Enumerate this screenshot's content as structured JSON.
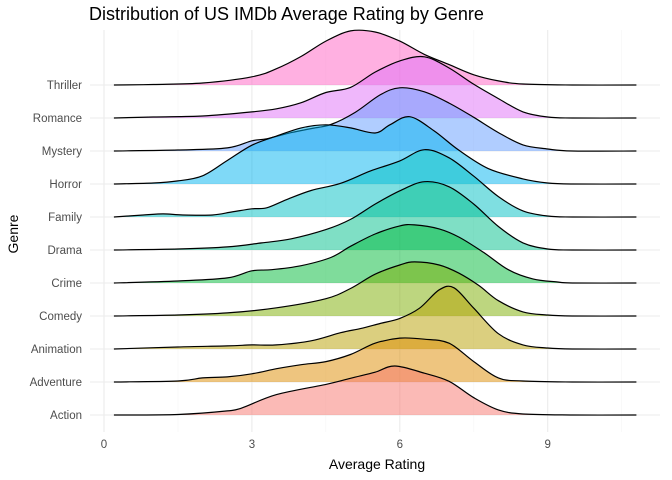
{
  "chart_data": {
    "type": "ridgeline",
    "title": "Distribution of US IMDb Average Rating by Genre",
    "xlabel": "Average Rating",
    "ylabel": "Genre",
    "xlim": [
      0,
      11
    ],
    "x_ticks": [
      0,
      3,
      6,
      9
    ],
    "grid": true,
    "legend": "none",
    "series": [
      {
        "name": "Action",
        "color": "#F8766D",
        "points": [
          [
            0.2,
            0.0
          ],
          [
            1.5,
            0.005
          ],
          [
            2.5,
            0.04
          ],
          [
            2.8,
            0.07
          ],
          [
            3.5,
            0.2
          ],
          [
            4.5,
            0.3
          ],
          [
            5.0,
            0.36
          ],
          [
            5.5,
            0.42
          ],
          [
            5.9,
            0.48
          ],
          [
            6.5,
            0.41
          ],
          [
            7.0,
            0.33
          ],
          [
            7.5,
            0.17
          ],
          [
            8.0,
            0.05
          ],
          [
            8.5,
            0.01
          ],
          [
            9.5,
            0.0
          ],
          [
            10.8,
            0.0
          ]
        ]
      },
      {
        "name": "Adventure",
        "color": "#DE8C00",
        "points": [
          [
            0.2,
            0.0
          ],
          [
            1.5,
            0.01
          ],
          [
            2.0,
            0.04
          ],
          [
            2.5,
            0.05
          ],
          [
            3.0,
            0.08
          ],
          [
            3.5,
            0.13
          ],
          [
            4.0,
            0.17
          ],
          [
            4.5,
            0.2
          ],
          [
            5.0,
            0.27
          ],
          [
            5.5,
            0.38
          ],
          [
            6.0,
            0.43
          ],
          [
            6.5,
            0.42
          ],
          [
            7.0,
            0.38
          ],
          [
            7.5,
            0.2
          ],
          [
            8.0,
            0.04
          ],
          [
            8.5,
            0.01
          ],
          [
            9.5,
            0.0
          ],
          [
            10.8,
            0.0
          ]
        ]
      },
      {
        "name": "Animation",
        "color": "#B79F00",
        "points": [
          [
            0.2,
            0.0
          ],
          [
            1.5,
            0.02
          ],
          [
            2.5,
            0.03
          ],
          [
            3.0,
            0.04
          ],
          [
            3.5,
            0.04
          ],
          [
            4.2,
            0.08
          ],
          [
            4.8,
            0.16
          ],
          [
            5.2,
            0.2
          ],
          [
            5.6,
            0.25
          ],
          [
            6.0,
            0.3
          ],
          [
            6.4,
            0.4
          ],
          [
            6.8,
            0.58
          ],
          [
            7.1,
            0.6
          ],
          [
            7.5,
            0.4
          ],
          [
            8.0,
            0.15
          ],
          [
            8.5,
            0.04
          ],
          [
            9.0,
            0.01
          ],
          [
            9.5,
            0.0
          ],
          [
            10.8,
            0.0
          ]
        ]
      },
      {
        "name": "Comedy",
        "color": "#7CAE00",
        "points": [
          [
            0.2,
            0.0
          ],
          [
            1.5,
            0.01
          ],
          [
            2.5,
            0.03
          ],
          [
            3.5,
            0.08
          ],
          [
            4.5,
            0.17
          ],
          [
            5.0,
            0.27
          ],
          [
            5.5,
            0.41
          ],
          [
            6.0,
            0.5
          ],
          [
            6.3,
            0.53
          ],
          [
            6.8,
            0.5
          ],
          [
            7.2,
            0.42
          ],
          [
            7.6,
            0.3
          ],
          [
            8.0,
            0.15
          ],
          [
            8.5,
            0.04
          ],
          [
            9.0,
            0.01
          ],
          [
            9.5,
            0.0
          ],
          [
            10.8,
            0.0
          ]
        ]
      },
      {
        "name": "Crime",
        "color": "#00BA38",
        "points": [
          [
            0.2,
            0.0
          ],
          [
            1.5,
            0.02
          ],
          [
            2.5,
            0.05
          ],
          [
            3.0,
            0.12
          ],
          [
            3.4,
            0.13
          ],
          [
            4.0,
            0.17
          ],
          [
            4.6,
            0.25
          ],
          [
            5.0,
            0.36
          ],
          [
            5.5,
            0.48
          ],
          [
            6.0,
            0.56
          ],
          [
            6.3,
            0.57
          ],
          [
            6.8,
            0.53
          ],
          [
            7.2,
            0.45
          ],
          [
            7.7,
            0.3
          ],
          [
            8.2,
            0.13
          ],
          [
            8.7,
            0.04
          ],
          [
            9.2,
            0.01
          ],
          [
            9.5,
            0.0
          ],
          [
            10.8,
            0.0
          ]
        ]
      },
      {
        "name": "Drama",
        "color": "#00C08B",
        "points": [
          [
            0.2,
            0.0
          ],
          [
            1.5,
            0.01
          ],
          [
            2.5,
            0.03
          ],
          [
            3.2,
            0.07
          ],
          [
            3.8,
            0.11
          ],
          [
            4.5,
            0.2
          ],
          [
            5.0,
            0.3
          ],
          [
            5.5,
            0.45
          ],
          [
            6.0,
            0.58
          ],
          [
            6.5,
            0.67
          ],
          [
            7.0,
            0.62
          ],
          [
            7.5,
            0.45
          ],
          [
            8.0,
            0.23
          ],
          [
            8.5,
            0.07
          ],
          [
            9.0,
            0.01
          ],
          [
            9.5,
            0.0
          ],
          [
            10.8,
            0.0
          ]
        ]
      },
      {
        "name": "Family",
        "color": "#00BFC4",
        "points": [
          [
            0.2,
            0.0
          ],
          [
            0.8,
            0.02
          ],
          [
            1.2,
            0.03
          ],
          [
            1.6,
            0.02
          ],
          [
            2.2,
            0.02
          ],
          [
            2.6,
            0.05
          ],
          [
            3.0,
            0.08
          ],
          [
            3.3,
            0.09
          ],
          [
            3.7,
            0.17
          ],
          [
            4.2,
            0.26
          ],
          [
            4.8,
            0.33
          ],
          [
            5.4,
            0.45
          ],
          [
            6.0,
            0.55
          ],
          [
            6.5,
            0.66
          ],
          [
            7.0,
            0.58
          ],
          [
            7.5,
            0.4
          ],
          [
            8.0,
            0.2
          ],
          [
            8.5,
            0.06
          ],
          [
            9.0,
            0.01
          ],
          [
            9.5,
            0.0
          ],
          [
            10.8,
            0.0
          ]
        ]
      },
      {
        "name": "Horror",
        "color": "#00B4F0",
        "points": [
          [
            0.2,
            0.0
          ],
          [
            1.0,
            0.01
          ],
          [
            1.5,
            0.03
          ],
          [
            2.0,
            0.08
          ],
          [
            2.5,
            0.23
          ],
          [
            3.0,
            0.38
          ],
          [
            3.5,
            0.47
          ],
          [
            4.0,
            0.55
          ],
          [
            4.5,
            0.58
          ],
          [
            5.0,
            0.55
          ],
          [
            5.5,
            0.5
          ],
          [
            5.8,
            0.58
          ],
          [
            6.2,
            0.66
          ],
          [
            6.7,
            0.52
          ],
          [
            7.2,
            0.33
          ],
          [
            7.8,
            0.15
          ],
          [
            8.5,
            0.05
          ],
          [
            9.0,
            0.01
          ],
          [
            9.5,
            0.0
          ],
          [
            10.8,
            0.0
          ]
        ]
      },
      {
        "name": "Mystery",
        "color": "#619CFF",
        "points": [
          [
            0.2,
            0.0
          ],
          [
            1.5,
            0.01
          ],
          [
            2.5,
            0.03
          ],
          [
            3.0,
            0.1
          ],
          [
            3.3,
            0.12
          ],
          [
            3.8,
            0.18
          ],
          [
            4.2,
            0.22
          ],
          [
            4.6,
            0.26
          ],
          [
            5.1,
            0.38
          ],
          [
            5.6,
            0.55
          ],
          [
            6.0,
            0.62
          ],
          [
            6.5,
            0.58
          ],
          [
            7.0,
            0.47
          ],
          [
            7.5,
            0.33
          ],
          [
            8.0,
            0.18
          ],
          [
            8.5,
            0.06
          ],
          [
            9.0,
            0.02
          ],
          [
            9.5,
            0.0
          ],
          [
            10.8,
            0.0
          ]
        ]
      },
      {
        "name": "Romance",
        "color": "#DF70F8",
        "points": [
          [
            0.2,
            0.0
          ],
          [
            1.0,
            0.01
          ],
          [
            2.0,
            0.02
          ],
          [
            3.0,
            0.06
          ],
          [
            3.5,
            0.09
          ],
          [
            4.0,
            0.15
          ],
          [
            4.5,
            0.25
          ],
          [
            5.0,
            0.3
          ],
          [
            5.5,
            0.45
          ],
          [
            6.0,
            0.56
          ],
          [
            6.5,
            0.6
          ],
          [
            7.0,
            0.49
          ],
          [
            7.5,
            0.33
          ],
          [
            8.0,
            0.19
          ],
          [
            8.5,
            0.06
          ],
          [
            9.0,
            0.01
          ],
          [
            9.5,
            0.0
          ],
          [
            10.8,
            0.0
          ]
        ]
      },
      {
        "name": "Thriller",
        "color": "#FF61C3",
        "points": [
          [
            0.2,
            0.0
          ],
          [
            1.0,
            0.005
          ],
          [
            2.0,
            0.02
          ],
          [
            3.0,
            0.08
          ],
          [
            3.5,
            0.16
          ],
          [
            4.0,
            0.28
          ],
          [
            4.5,
            0.43
          ],
          [
            5.0,
            0.53
          ],
          [
            5.5,
            0.52
          ],
          [
            6.0,
            0.43
          ],
          [
            6.5,
            0.3
          ],
          [
            7.0,
            0.2
          ],
          [
            7.5,
            0.1
          ],
          [
            8.0,
            0.04
          ],
          [
            8.5,
            0.01
          ],
          [
            9.5,
            0.0
          ],
          [
            10.8,
            0.0
          ]
        ]
      }
    ]
  }
}
